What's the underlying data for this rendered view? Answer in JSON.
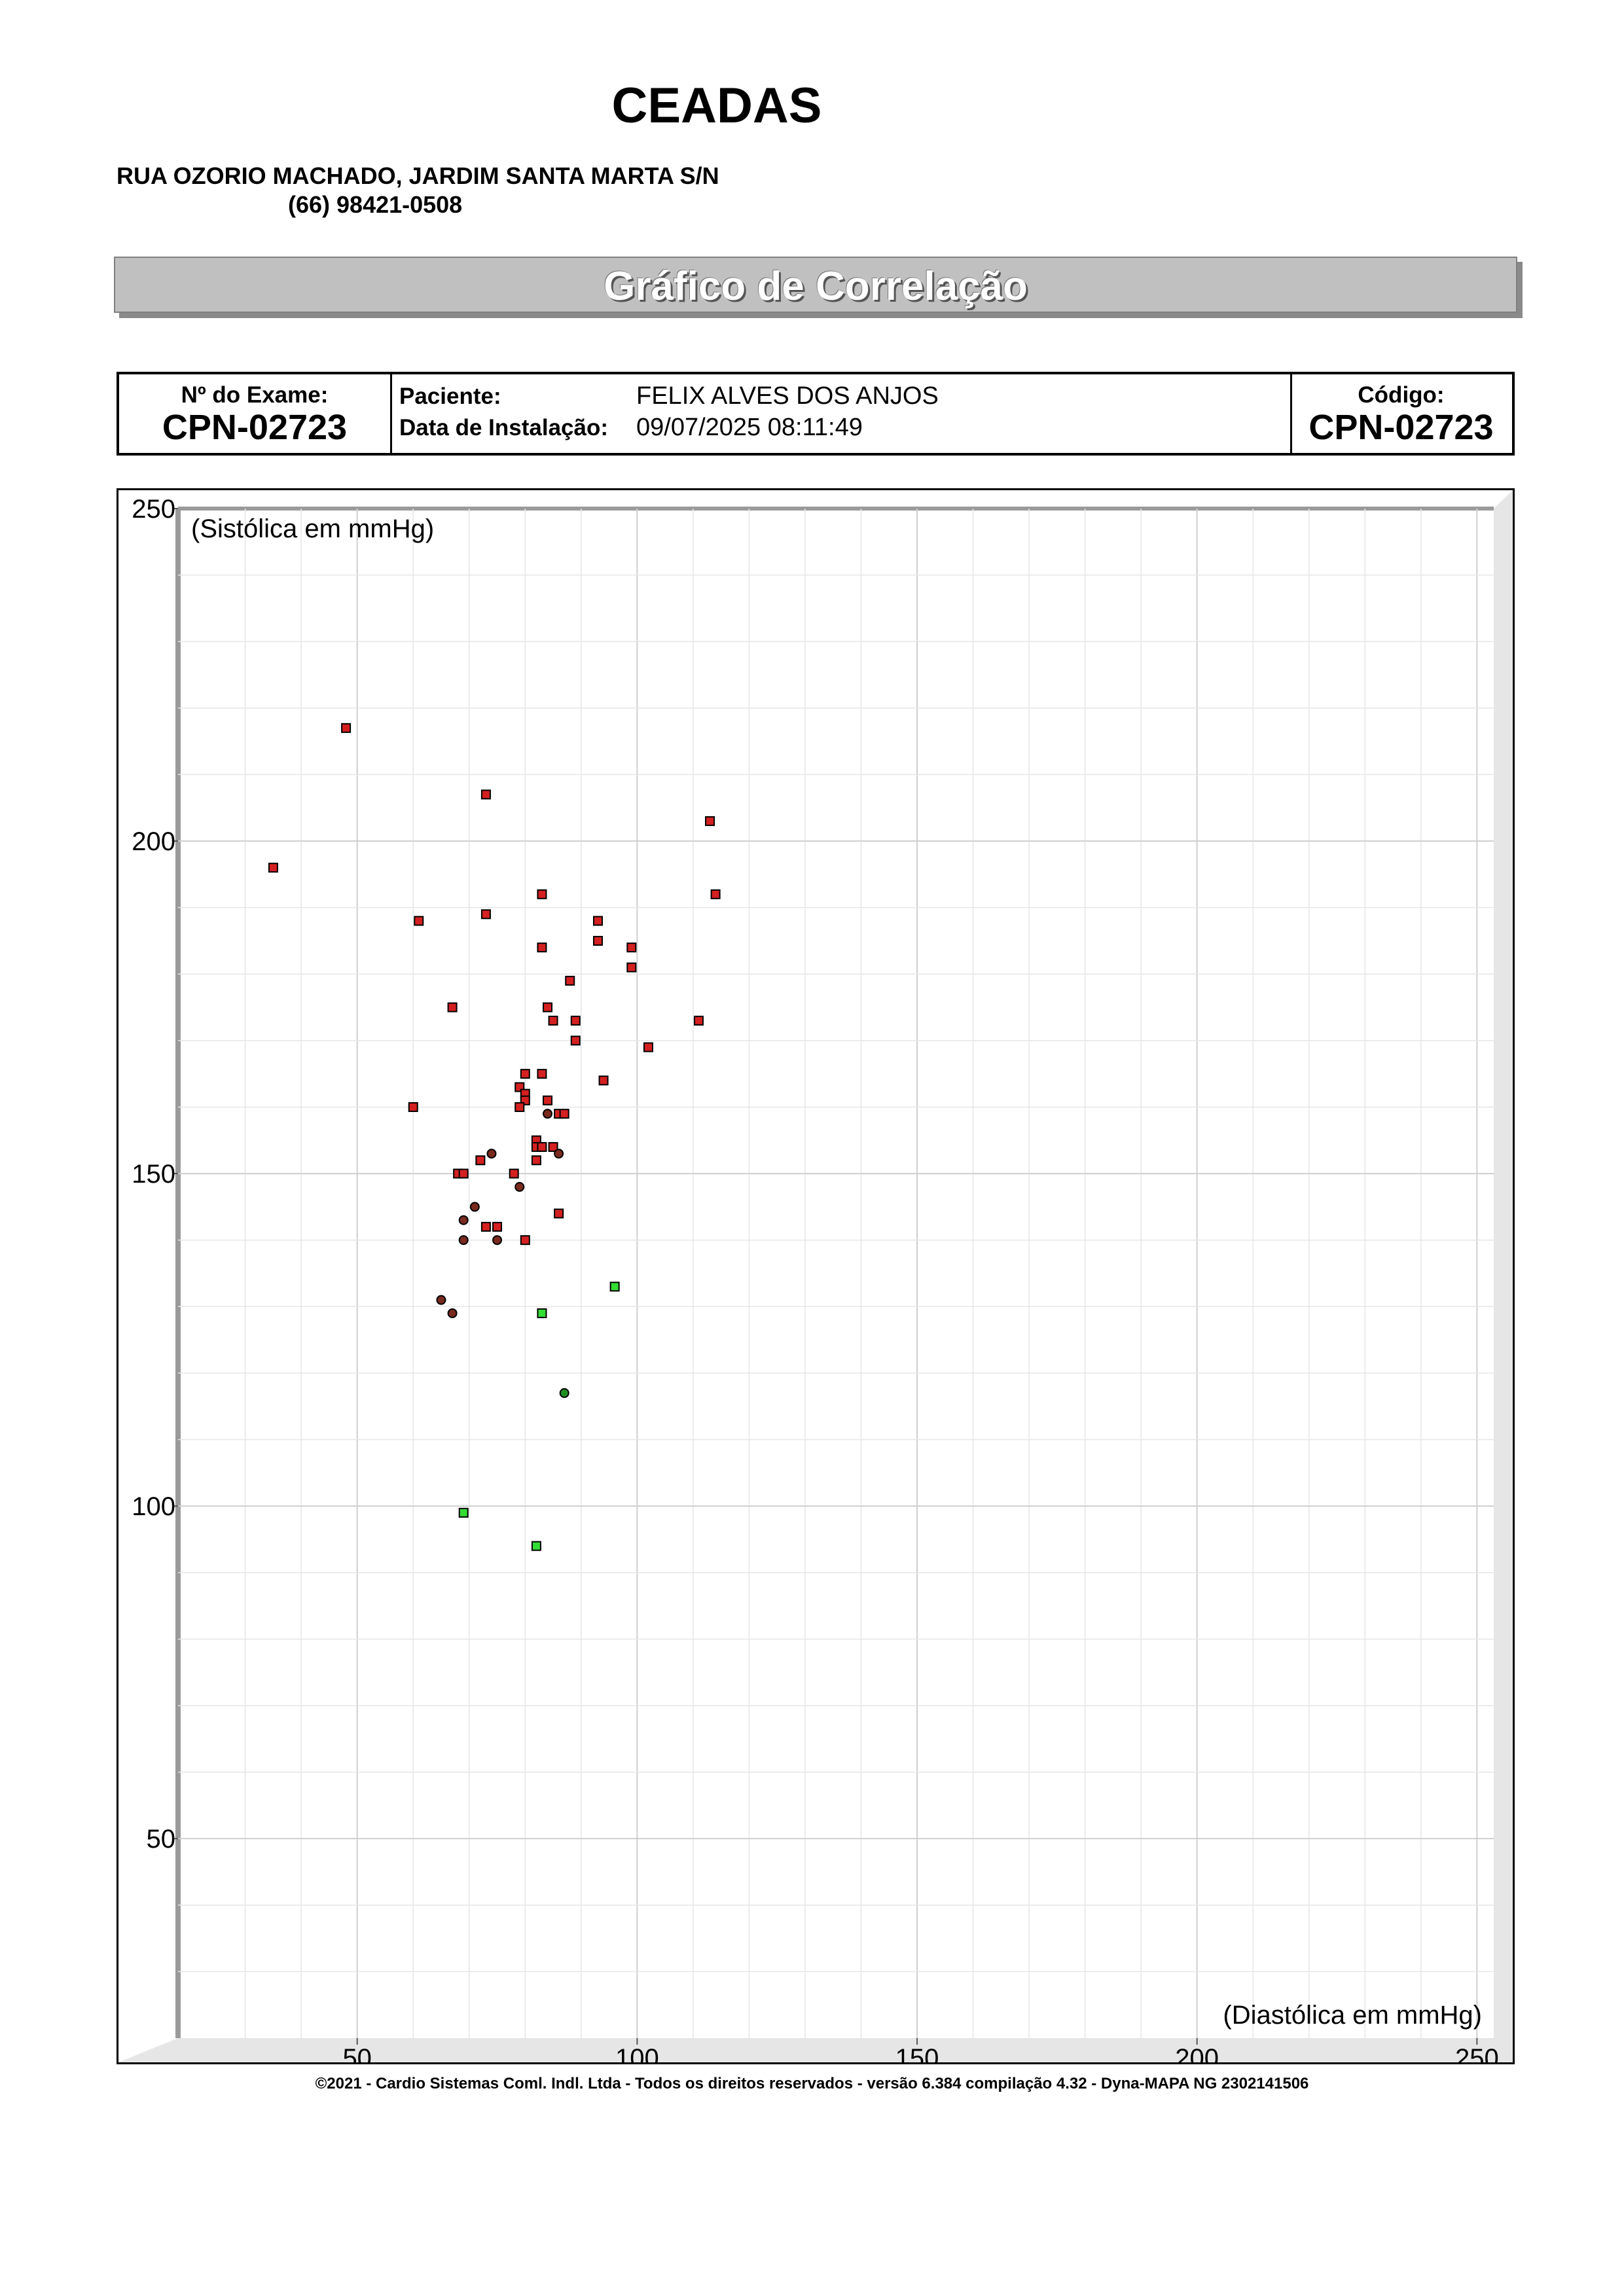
{
  "header": {
    "org_name": "CEADAS",
    "address": "RUA OZORIO MACHADO, JARDIM SANTA MARTA S/N",
    "phone": "(66) 98421-0508"
  },
  "banner": {
    "title": "Gráfico de Correlação"
  },
  "info": {
    "exam_label": "Nº do Exame:",
    "exam_value": "CPN-02723",
    "patient_label": "Paciente:",
    "patient_value": "FELIX ALVES DOS  ANJOS",
    "install_label": "Data de Instalação:",
    "install_value": "09/07/2025 08:11:49",
    "code_label": "Código:",
    "code_value": "CPN-02723"
  },
  "chart_data": {
    "type": "scatter",
    "title": "",
    "xlabel": "(Diastólica em mmHg)",
    "ylabel": "(Sistólica em mmHg)",
    "xlim": [
      18,
      253
    ],
    "ylim": [
      20,
      250
    ],
    "x_ticks": [
      50,
      100,
      150,
      200,
      250
    ],
    "y_ticks": [
      50,
      100,
      150,
      200,
      250
    ],
    "grid": true,
    "colors": {
      "red": "#d42020",
      "brown": "#7a2a1e",
      "green": "#33dd33",
      "dark_green": "#1f8f1f"
    },
    "series": [
      {
        "marker": "square",
        "color": "red",
        "points": [
          [
            48,
            217
          ],
          [
            73,
            207
          ],
          [
            113,
            203
          ],
          [
            35,
            196
          ],
          [
            83,
            192
          ],
          [
            114,
            192
          ],
          [
            61,
            188
          ],
          [
            73,
            189
          ],
          [
            93,
            188
          ],
          [
            93,
            185
          ],
          [
            83,
            184
          ],
          [
            99,
            184
          ],
          [
            99,
            181
          ],
          [
            88,
            179
          ],
          [
            67,
            175
          ],
          [
            84,
            175
          ],
          [
            85,
            173
          ],
          [
            89,
            173
          ],
          [
            111,
            173
          ],
          [
            89,
            170
          ],
          [
            102,
            169
          ],
          [
            80,
            165
          ],
          [
            83,
            165
          ],
          [
            94,
            164
          ],
          [
            79,
            163
          ],
          [
            80,
            162
          ],
          [
            80,
            161
          ],
          [
            84,
            161
          ],
          [
            60,
            160
          ],
          [
            79,
            160
          ],
          [
            86,
            159
          ],
          [
            87,
            159
          ],
          [
            82,
            155
          ],
          [
            82,
            154
          ],
          [
            83,
            154
          ],
          [
            85,
            154
          ],
          [
            72,
            152
          ],
          [
            82,
            152
          ],
          [
            68,
            150
          ],
          [
            69,
            150
          ],
          [
            78,
            150
          ],
          [
            86,
            144
          ],
          [
            73,
            142
          ],
          [
            75,
            142
          ],
          [
            80,
            140
          ]
        ]
      },
      {
        "marker": "circle",
        "color": "brown",
        "points": [
          [
            84,
            159
          ],
          [
            74,
            153
          ],
          [
            86,
            153
          ],
          [
            79,
            148
          ],
          [
            71,
            145
          ],
          [
            69,
            143
          ],
          [
            69,
            140
          ],
          [
            75,
            140
          ],
          [
            65,
            131
          ],
          [
            67,
            129
          ]
        ]
      },
      {
        "marker": "square",
        "color": "green",
        "points": [
          [
            96,
            133
          ],
          [
            83,
            129
          ],
          [
            69,
            99
          ],
          [
            82,
            94
          ]
        ]
      },
      {
        "marker": "circle",
        "color": "dark_green",
        "points": [
          [
            87,
            117
          ]
        ]
      }
    ]
  },
  "footer": {
    "copyright": "©2021 - Cardio Sistemas Coml. Indl. Ltda - Todos os direitos reservados - versão 6.384 compilação 4.32 - Dyna-MAPA NG 2302141506"
  }
}
